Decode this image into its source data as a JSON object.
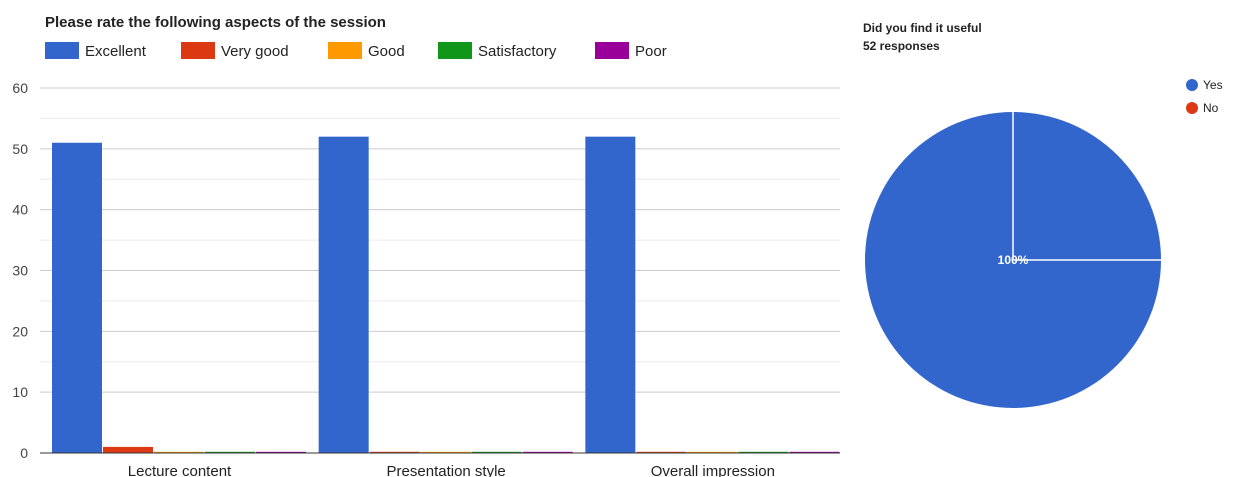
{
  "chart_data": [
    {
      "type": "bar",
      "title": "Please rate the following aspects of the session",
      "categories": [
        "Lecture content",
        "Presentation style",
        "Overall impression"
      ],
      "series": [
        {
          "name": "Excellent",
          "color": "#3366cc",
          "values": [
            51,
            52,
            52
          ]
        },
        {
          "name": "Very good",
          "color": "#dc3912",
          "values": [
            1,
            0,
            0
          ]
        },
        {
          "name": "Good",
          "color": "#ff9900",
          "values": [
            0,
            0,
            0
          ]
        },
        {
          "name": "Satisfactory",
          "color": "#109618",
          "values": [
            0,
            0,
            0
          ]
        },
        {
          "name": "Poor",
          "color": "#990099",
          "values": [
            0,
            0,
            0
          ]
        }
      ],
      "yticks": [
        0,
        10,
        20,
        30,
        40,
        50,
        60
      ],
      "ylim": [
        0,
        60
      ],
      "grid": true,
      "legend": "top"
    },
    {
      "type": "pie",
      "title": "Did you find it useful",
      "subtitle": "52 responses",
      "labels": [
        "Yes",
        "No"
      ],
      "values": [
        100,
        0
      ],
      "colors": [
        "#3366cc",
        "#dc3912"
      ],
      "slice_label": "100%",
      "legend": "right"
    }
  ]
}
